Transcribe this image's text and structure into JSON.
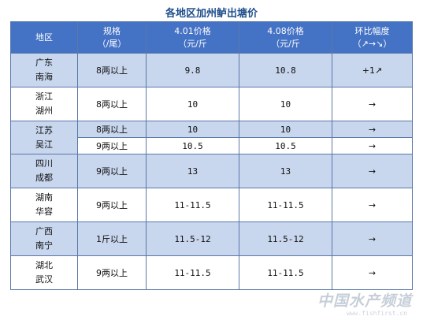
{
  "title": "各地区加州鲈出塘价",
  "header": {
    "region": "地区",
    "spec_line1": "规格",
    "spec_line2": "（/尾）",
    "price1_line1": "4.01价格",
    "price1_line2": "（元/斤",
    "price2_line1": "4.08价格",
    "price2_line2": "（元/斤",
    "change_line1": "环比幅度",
    "change_line2": "（↗→↘）"
  },
  "rows": [
    {
      "region1": "广东",
      "region2": "南海",
      "spec": "8两以上",
      "p1": "9.8",
      "p2": "10.8",
      "change": "+1↗"
    },
    {
      "region1": "浙江",
      "region2": "湖州",
      "spec": "8两以上",
      "p1": "10",
      "p2": "10",
      "change": "→"
    },
    {
      "region1": "江苏",
      "region2": "吴江",
      "spec": "8两以上",
      "p1": "10",
      "p2": "10",
      "change": "→"
    },
    {
      "spec": "9两以上",
      "p1": "10.5",
      "p2": "10.5",
      "change": "→"
    },
    {
      "region1": "四川",
      "region2": "成都",
      "spec": "9两以上",
      "p1": "13",
      "p2": "13",
      "change": "→"
    },
    {
      "region1": "湖南",
      "region2": "华容",
      "spec": "9两以上",
      "p1": "11-11.5",
      "p2": "11-11.5",
      "change": "→"
    },
    {
      "region1": "广西",
      "region2": "南宁",
      "spec": "1斤以上",
      "p1": "11.5-12",
      "p2": "11.5-12",
      "change": "→"
    },
    {
      "region1": "湖北",
      "region2": "武汉",
      "spec": "9两以上",
      "p1": "11-11.5",
      "p2": "11-11.5",
      "change": "→"
    }
  ],
  "watermark": "中国水产频道",
  "watermark_url": "www.fishfirst.cn"
}
